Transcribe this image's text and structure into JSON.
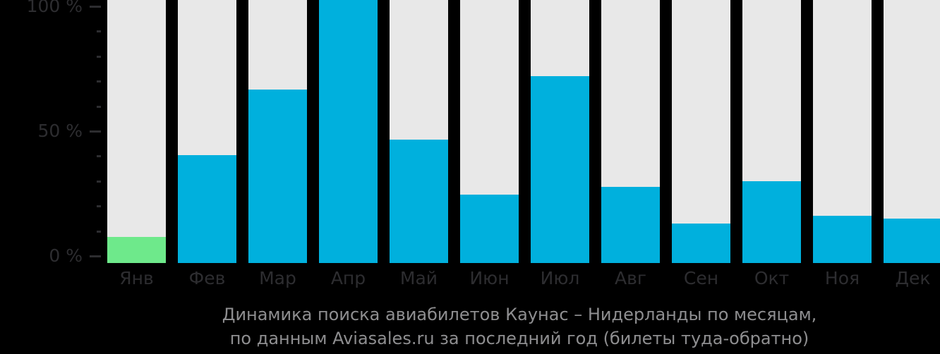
{
  "title": {
    "line1": "Динамика поиска авиабилетов Каунас – Нидерланды по месяцам,",
    "line2": "по данным Aviasales.ru за последний год (билеты туда-обратно)"
  },
  "y_axis": {
    "major_ticks": [
      {
        "label": "100 %",
        "value": 100
      },
      {
        "label": "50 %",
        "value": 50
      },
      {
        "label": "0 %",
        "value": 0
      }
    ],
    "minor_ticks_between_majors": 4
  },
  "chart_data": {
    "type": "bar",
    "categories": [
      "Янв",
      "Фев",
      "Мар",
      "Апр",
      "Май",
      "Июн",
      "Июл",
      "Авг",
      "Сен",
      "Окт",
      "Ноя",
      "Дек"
    ],
    "values": [
      10,
      41,
      66,
      100,
      47,
      26,
      71,
      29,
      15,
      31,
      18,
      17
    ],
    "unit": "%",
    "title": "Динамика поиска авиабилетов Каунас – Нидерланды по месяцам, по данным Aviasales.ru за последний год (билеты туда-обратно)",
    "xlabel": "",
    "ylabel": "",
    "ylim": [
      0,
      100
    ],
    "grid": false,
    "legend": false,
    "highlight_index": 0
  },
  "colors": {
    "background": "#000000",
    "bar": "#00b0dd",
    "bar_highlight": "#6ee98b",
    "column_background": "#e8e8e8",
    "axis_text": "#2d2d30",
    "tick_mark": "#2d2d30",
    "title_text": "#8e8e90"
  }
}
